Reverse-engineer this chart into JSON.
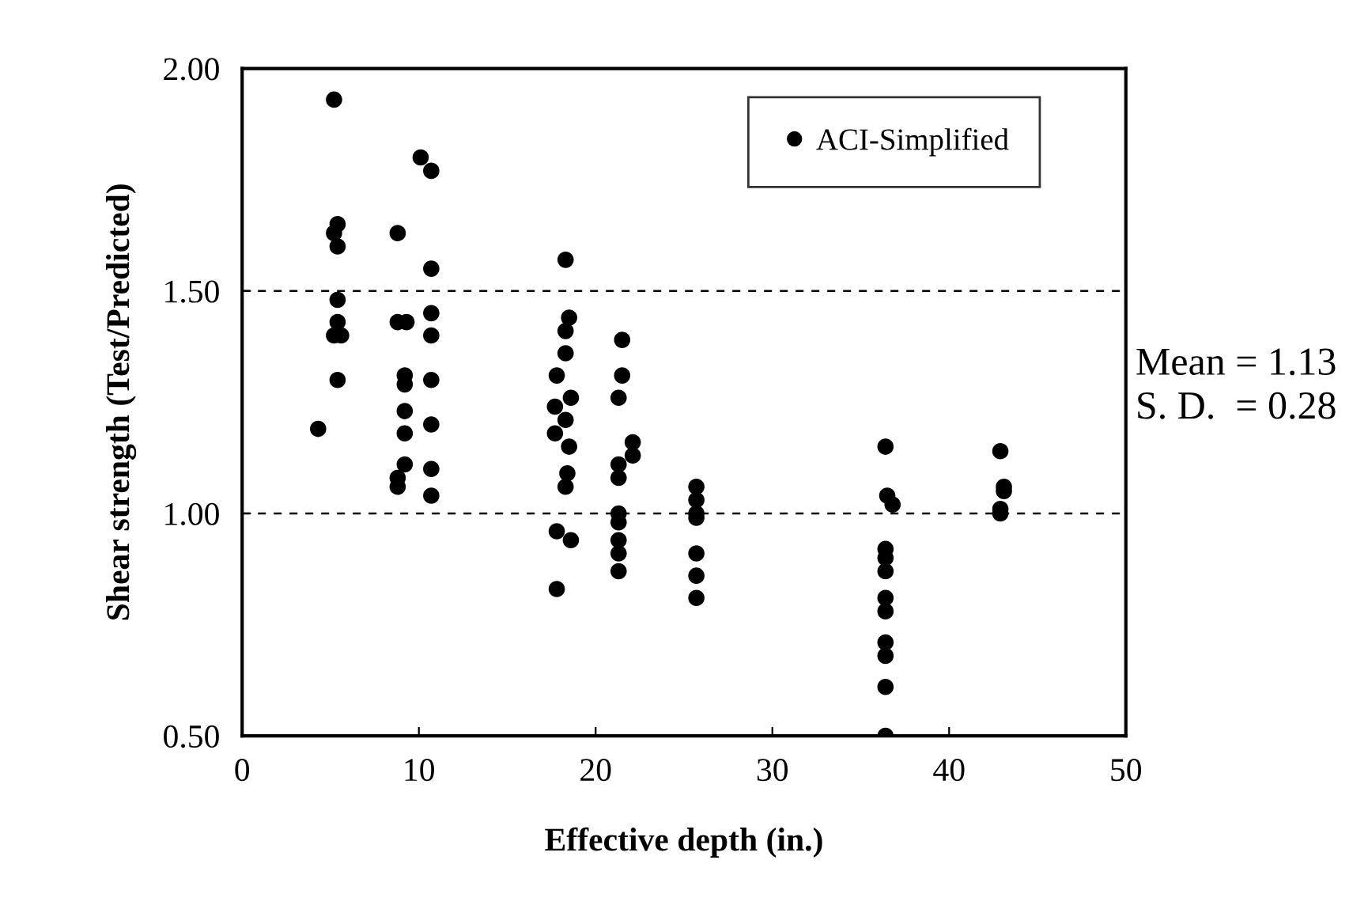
{
  "chart_data": {
    "type": "scatter",
    "xlabel": "Effective depth (in.)",
    "ylabel": "Shear strength (Test/Predicted)",
    "xlim": [
      0,
      50
    ],
    "xticks": [
      0,
      10,
      20,
      30,
      40,
      50
    ],
    "ylim": [
      0.5,
      2.0
    ],
    "yticks": [
      {
        "value": 0.5,
        "label": "0.50"
      },
      {
        "value": 1.0,
        "label": "1.00"
      },
      {
        "value": 1.5,
        "label": "1.50"
      },
      {
        "value": 2.0,
        "label": "2.00"
      }
    ],
    "grid": false,
    "legend": "top right",
    "marker": "circle",
    "ref_lines": [
      {
        "axis": "y",
        "value": 1.5,
        "line_style": "dashed",
        "color": "#000000"
      },
      {
        "axis": "y",
        "value": 1.0,
        "line_style": "dashed",
        "color": "#000000"
      }
    ],
    "annotations": [
      "Mean = 1.13",
      "S. D.  = 0.28"
    ],
    "series": [
      {
        "name": "ACI-Simplified",
        "color": "#000000",
        "x": [
          5.2,
          10.1,
          10.7,
          5.4,
          5.2,
          5.4,
          8.8,
          10.7,
          5.4,
          5.4,
          5.2,
          5.6,
          8.8,
          9.3,
          10.7,
          10.7,
          5.4,
          9.2,
          9.2,
          10.7,
          9.2,
          9.2,
          10.7,
          4.3,
          9.2,
          8.8,
          8.8,
          10.7,
          10.7,
          18.3,
          18.5,
          18.3,
          18.3,
          17.8,
          18.6,
          17.7,
          18.3,
          17.7,
          18.5,
          18.4,
          18.3,
          17.8,
          18.6,
          17.8,
          21.5,
          21.5,
          21.3,
          22.1,
          22.1,
          21.3,
          21.3,
          21.3,
          21.3,
          21.3,
          21.3,
          21.3,
          25.7,
          25.7,
          25.7,
          25.7,
          25.7,
          25.7,
          25.7,
          36.4,
          36.5,
          36.8,
          36.4,
          36.4,
          36.4,
          36.4,
          36.4,
          36.4,
          36.4,
          36.4,
          36.4,
          42.9,
          43.1,
          43.1,
          42.9,
          42.9
        ],
        "values": [
          1.93,
          1.8,
          1.77,
          1.65,
          1.63,
          1.6,
          1.63,
          1.55,
          1.48,
          1.43,
          1.4,
          1.4,
          1.43,
          1.43,
          1.45,
          1.4,
          1.3,
          1.31,
          1.29,
          1.3,
          1.23,
          1.18,
          1.2,
          1.19,
          1.11,
          1.08,
          1.06,
          1.1,
          1.04,
          1.57,
          1.44,
          1.41,
          1.36,
          1.31,
          1.26,
          1.24,
          1.21,
          1.18,
          1.15,
          1.09,
          1.06,
          0.96,
          0.94,
          0.83,
          1.39,
          1.31,
          1.26,
          1.16,
          1.13,
          1.11,
          1.08,
          1.0,
          0.98,
          0.94,
          0.91,
          0.87,
          1.06,
          1.03,
          1.0,
          0.99,
          0.91,
          0.86,
          0.81,
          1.15,
          1.04,
          1.02,
          0.92,
          0.9,
          0.87,
          0.81,
          0.78,
          0.71,
          0.68,
          0.61,
          0.5,
          1.14,
          1.06,
          1.05,
          1.01,
          1.0
        ]
      }
    ]
  }
}
